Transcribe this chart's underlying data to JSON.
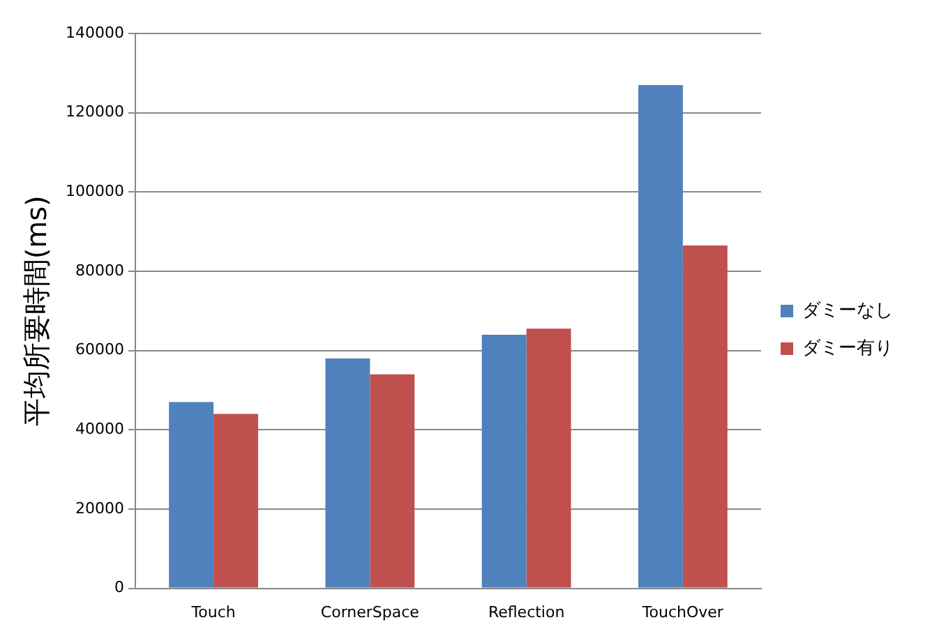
{
  "chart_data": {
    "type": "bar",
    "ylabel": "平均所要時間(ms)",
    "categories": [
      "Touch",
      "CornerSpace",
      "Reflection",
      "TouchOver"
    ],
    "series": [
      {
        "name": "ダミーなし",
        "color": "#4f81bd",
        "values": [
          47000,
          58000,
          64000,
          127000
        ]
      },
      {
        "name": "ダミー有り",
        "color": "#c0504d",
        "values": [
          44000,
          54000,
          65500,
          86500
        ]
      }
    ],
    "ylim": [
      0,
      140000
    ],
    "yticks": [
      0,
      20000,
      40000,
      60000,
      80000,
      100000,
      120000,
      140000
    ],
    "grid": "y",
    "legend": "right"
  }
}
